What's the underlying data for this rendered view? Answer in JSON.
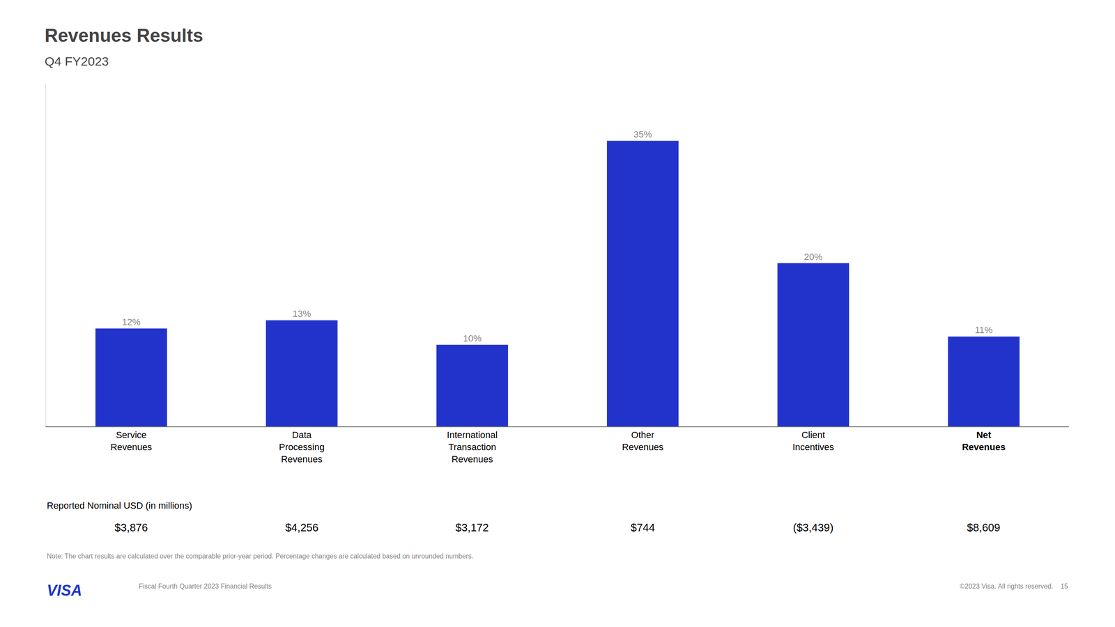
{
  "chart_data": {
    "type": "bar",
    "title": "Revenues Results",
    "subtitle": "Q4 FY2023",
    "categories": [
      "Service\nRevenues",
      "Data\nProcessing\nRevenues",
      "International\nTransaction\nRevenues",
      "Other\nRevenues",
      "Client\nIncentives",
      "Net\nRevenues"
    ],
    "values": [
      12,
      13,
      10,
      35,
      20,
      11
    ],
    "value_labels": [
      "12%",
      "13%",
      "10%",
      "35%",
      "20%",
      "11%"
    ],
    "data_labels": true,
    "color": "#2233CC",
    "ylim": [
      0,
      42
    ],
    "grid": false,
    "tick_labels": "x",
    "annotations": [
      {
        "text": "Reported Nominal USD (in millions)"
      },
      {
        "text": "$3,876",
        "x": "Service\nRevenues"
      },
      {
        "text": "$4,256",
        "x": "Data\nProcessing\nRevenues"
      },
      {
        "text": "$3,172",
        "x": "International\nTransaction\nRevenues"
      },
      {
        "text": "$744",
        "x": "Other\nRevenues"
      },
      {
        "text": "($3,439)",
        "x": "Client\nIncentives"
      },
      {
        "text": "$8,609",
        "x": "Net\nRevenues"
      },
      {
        "text": "Note: The chart results are calculated over the comparable prior-year period. Percentage changes are calculated based on unrounded numbers."
      },
      {
        "text": "VISA"
      },
      {
        "text": "Fiscal Fourth Quarter 2023 Financial Results"
      },
      {
        "text": "©2023 Visa. All rights reserved.    15"
      }
    ]
  }
}
